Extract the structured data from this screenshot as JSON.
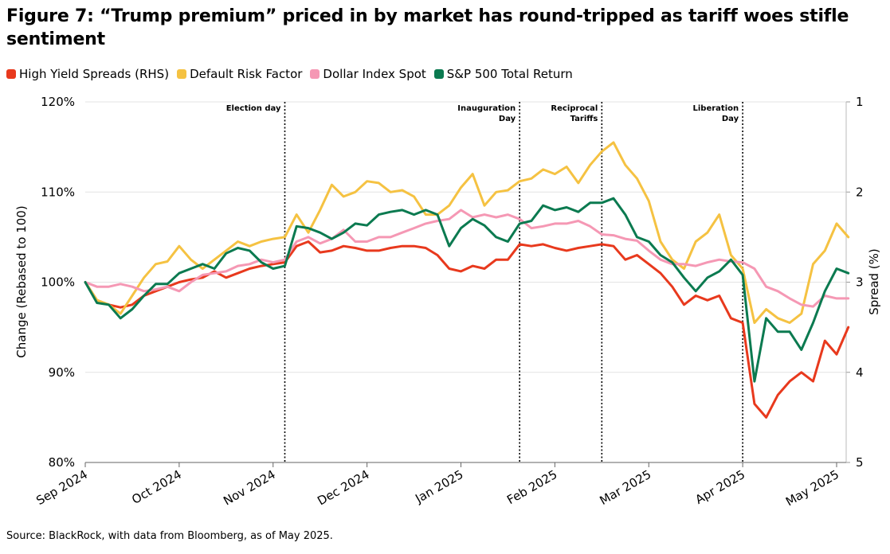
{
  "chart_data": {
    "type": "line",
    "title": "Figure 7: “Trump premium” priced in by market has round-tripped as tariff woes stifle sentiment",
    "y_label": "Change (Rebased to 100)",
    "y2_label": "Spread (%)",
    "source": "Source: BlackRock, with data from Bloomberg, as of May 2025.",
    "categories": [
      "Sep 2024",
      null,
      null,
      null,
      null,
      null,
      null,
      null,
      "Oct 2024",
      null,
      null,
      null,
      null,
      null,
      null,
      null,
      "Nov 2024",
      null,
      null,
      null,
      null,
      null,
      null,
      null,
      "Dec 2024",
      null,
      null,
      null,
      null,
      null,
      null,
      null,
      "Jan 2025",
      null,
      null,
      null,
      null,
      null,
      null,
      null,
      "Feb 2025",
      null,
      null,
      null,
      null,
      null,
      null,
      null,
      "Mar 2025",
      null,
      null,
      null,
      null,
      null,
      null,
      null,
      "Apr 2025",
      null,
      null,
      null,
      null,
      null,
      null,
      null,
      "May 2025",
      null
    ],
    "ylim": [
      80,
      120
    ],
    "yticks": [
      {
        "value": 80,
        "label": "80%"
      },
      {
        "value": 90,
        "label": "90%"
      },
      {
        "value": 100,
        "label": "100%"
      },
      {
        "value": 110,
        "label": "110%"
      },
      {
        "value": 120,
        "label": "120%"
      }
    ],
    "y2lim": [
      5,
      1
    ],
    "y2ticks": [
      1,
      2,
      3,
      4,
      5
    ],
    "grid": true,
    "annotations": [
      {
        "text": "Election day",
        "x": 17
      },
      {
        "text": "Inauguration\nDay",
        "x": 37
      },
      {
        "text": "Reciprocal\nTariffs",
        "x": 44
      },
      {
        "text": "Liberation\nDay",
        "x": 56
      }
    ],
    "series": [
      {
        "name": "High Yield Spreads (RHS)",
        "color": "#e8391d",
        "axis": "y2",
        "values": [
          3,
          3.2,
          3.25,
          3.28,
          3.25,
          3.15,
          3.1,
          3.05,
          3,
          2.97,
          2.95,
          2.88,
          2.95,
          2.9,
          2.85,
          2.82,
          2.8,
          2.78,
          2.6,
          2.55,
          2.67,
          2.65,
          2.6,
          2.62,
          2.65,
          2.65,
          2.62,
          2.6,
          2.6,
          2.62,
          2.7,
          2.85,
          2.88,
          2.82,
          2.85,
          2.75,
          2.75,
          2.58,
          2.6,
          2.58,
          2.62,
          2.65,
          2.62,
          2.6,
          2.58,
          2.6,
          2.75,
          2.7,
          2.8,
          2.9,
          3.05,
          3.25,
          3.15,
          3.2,
          3.15,
          3.4,
          3.45,
          4.35,
          4.5,
          4.25,
          4.1,
          4,
          4.1,
          3.65,
          3.8,
          3.5
        ]
      },
      {
        "name": "Default Risk Factor",
        "color": "#f5c242",
        "values": [
          100,
          98,
          97.5,
          96.5,
          98.5,
          100.5,
          102,
          102.3,
          104,
          102.5,
          101.5,
          102.5,
          103.5,
          104.5,
          104,
          104.5,
          104.8,
          105,
          107.5,
          105.5,
          108,
          110.8,
          109.5,
          110,
          111.2,
          111,
          110,
          110.2,
          109.5,
          107.5,
          107.5,
          108.5,
          110.5,
          112,
          108.5,
          110,
          110.2,
          111.2,
          111.5,
          112.5,
          112,
          112.8,
          111,
          113,
          114.5,
          115.5,
          113,
          111.5,
          109,
          104.5,
          102.5,
          101.5,
          104.5,
          105.5,
          107.5,
          103,
          101.5,
          95.5,
          97,
          96,
          95.5,
          96.5,
          102,
          103.5,
          106.5,
          105
        ]
      },
      {
        "name": "Dollar Index Spot",
        "color": "#f598b4",
        "values": [
          100,
          99.5,
          99.5,
          99.8,
          99.5,
          99,
          99.2,
          99.5,
          99,
          100,
          100.8,
          101,
          101.2,
          101.8,
          102,
          102.5,
          102.2,
          102.5,
          104.5,
          105,
          104.3,
          104.8,
          105.8,
          104.5,
          104.5,
          105,
          105,
          105.5,
          106,
          106.5,
          106.8,
          107,
          108,
          107.2,
          107.5,
          107.2,
          107.5,
          107,
          106,
          106.2,
          106.5,
          106.5,
          106.8,
          106.2,
          105.3,
          105.2,
          104.8,
          104.6,
          103.5,
          102.5,
          102,
          102,
          101.8,
          102.2,
          102.5,
          102.3,
          102.2,
          101.5,
          99.5,
          99,
          98.2,
          97.5,
          97.3,
          98.5,
          98.2,
          98.2
        ]
      },
      {
        "name": "S&P 500 Total Return",
        "color": "#0b7a50",
        "values": [
          100,
          97.7,
          97.5,
          96,
          97,
          98.5,
          99.8,
          99.8,
          101,
          101.5,
          102,
          101.5,
          103.2,
          103.8,
          103.5,
          102.2,
          101.5,
          101.8,
          106.2,
          106,
          105.5,
          104.8,
          105.5,
          106.5,
          106.3,
          107.5,
          107.8,
          108,
          107.5,
          108,
          107.5,
          104,
          106,
          107,
          106.3,
          105,
          104.5,
          106.5,
          106.8,
          108.5,
          108,
          108.3,
          107.8,
          108.8,
          108.8,
          109.3,
          107.5,
          105,
          104.5,
          103,
          102.2,
          100.5,
          99,
          100.5,
          101.2,
          102.5,
          100.8,
          89,
          96,
          94.5,
          94.5,
          92.5,
          95.5,
          99,
          101.5,
          101
        ]
      }
    ]
  }
}
